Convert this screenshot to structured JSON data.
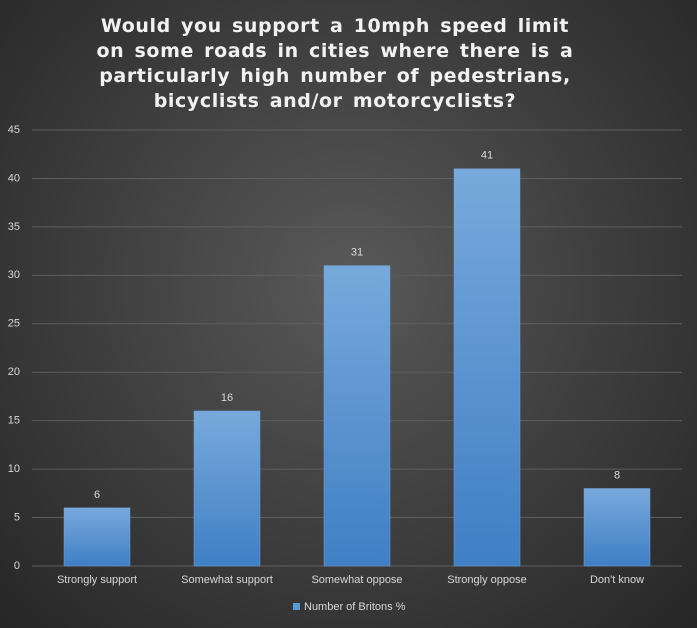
{
  "chart_data": {
    "type": "bar",
    "title": "Would you support a 10mph speed limit on some roads in cities where there is a particularly high number of pedestrians, bicyclists and/or motorcyclists?",
    "categories": [
      "Strongly support",
      "Somewhat support",
      "Somewhat oppose",
      "Strongly oppose",
      "Don't know"
    ],
    "series": [
      {
        "name": "Number of Britons %",
        "color": "#5b9bd5",
        "values": [
          6,
          16,
          31,
          41,
          8
        ]
      }
    ],
    "ylim": [
      0,
      45
    ],
    "yticks": [
      0,
      5,
      10,
      15,
      20,
      25,
      30,
      35,
      40,
      45
    ],
    "grid": true,
    "legend": "bottom"
  }
}
